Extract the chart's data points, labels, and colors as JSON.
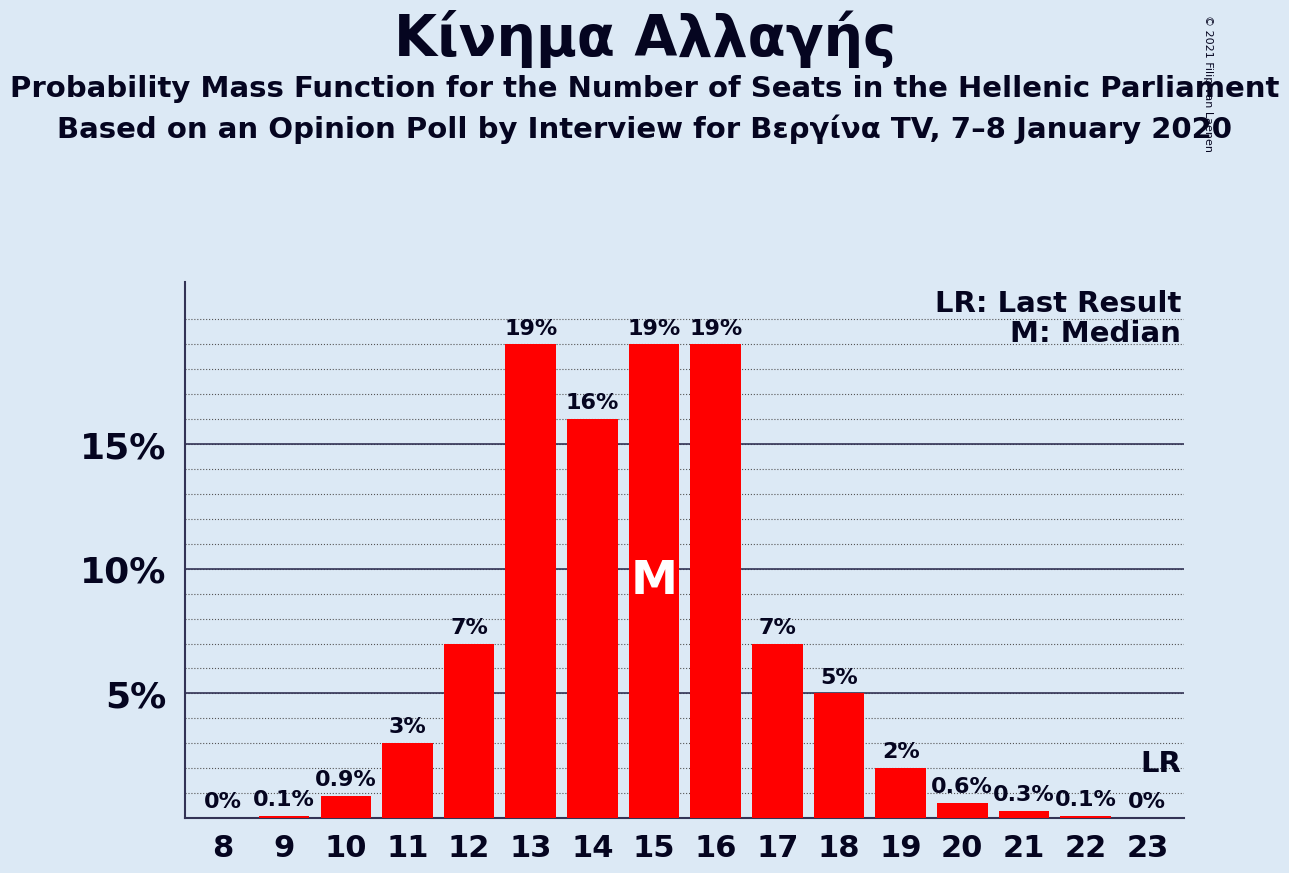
{
  "title": "Κίνημα Αλλαγής",
  "subtitle1": "Probability Mass Function for the Number of Seats in the Hellenic Parliament",
  "subtitle2": "Based on an Opinion Poll by Interview for Βεργίνα TV, 7–8 January 2020",
  "seats": [
    8,
    9,
    10,
    11,
    12,
    13,
    14,
    15,
    16,
    17,
    18,
    19,
    20,
    21,
    22,
    23
  ],
  "values": [
    0.0,
    0.1,
    0.9,
    3.0,
    7.0,
    19.0,
    16.0,
    19.0,
    19.0,
    7.0,
    5.0,
    2.0,
    0.6,
    0.3,
    0.1,
    0.0
  ],
  "bar_color": "#FF0000",
  "background_color": "#dce9f5",
  "text_color": "#050520",
  "median_seat": 15,
  "lr_seat": 22,
  "lr_value": 0.1,
  "copyright_text": "© 2021 Filip van Laenen",
  "annotations": {
    "8": "0%",
    "9": "0.1%",
    "10": "0.9%",
    "11": "3%",
    "12": "7%",
    "13": "19%",
    "14": "16%",
    "15": "19%",
    "16": "19%",
    "17": "7%",
    "18": "5%",
    "19": "2%",
    "20": "0.6%",
    "21": "0.3%",
    "22": "0.1%",
    "23": "0%"
  },
  "yticks_labeled": [
    5,
    10,
    15
  ],
  "yticks_all": [
    0,
    1,
    2,
    3,
    4,
    5,
    6,
    7,
    8,
    9,
    10,
    11,
    12,
    13,
    14,
    15,
    16,
    17,
    18,
    19,
    20
  ],
  "ylim": [
    0,
    21.5
  ],
  "xlabel_fontsize": 22,
  "ylabel_fontsize": 26,
  "title_fontsize": 40,
  "subtitle_fontsize": 21,
  "bar_label_fontsize": 16,
  "legend_fontsize": 21,
  "median_label_fontsize": 34
}
